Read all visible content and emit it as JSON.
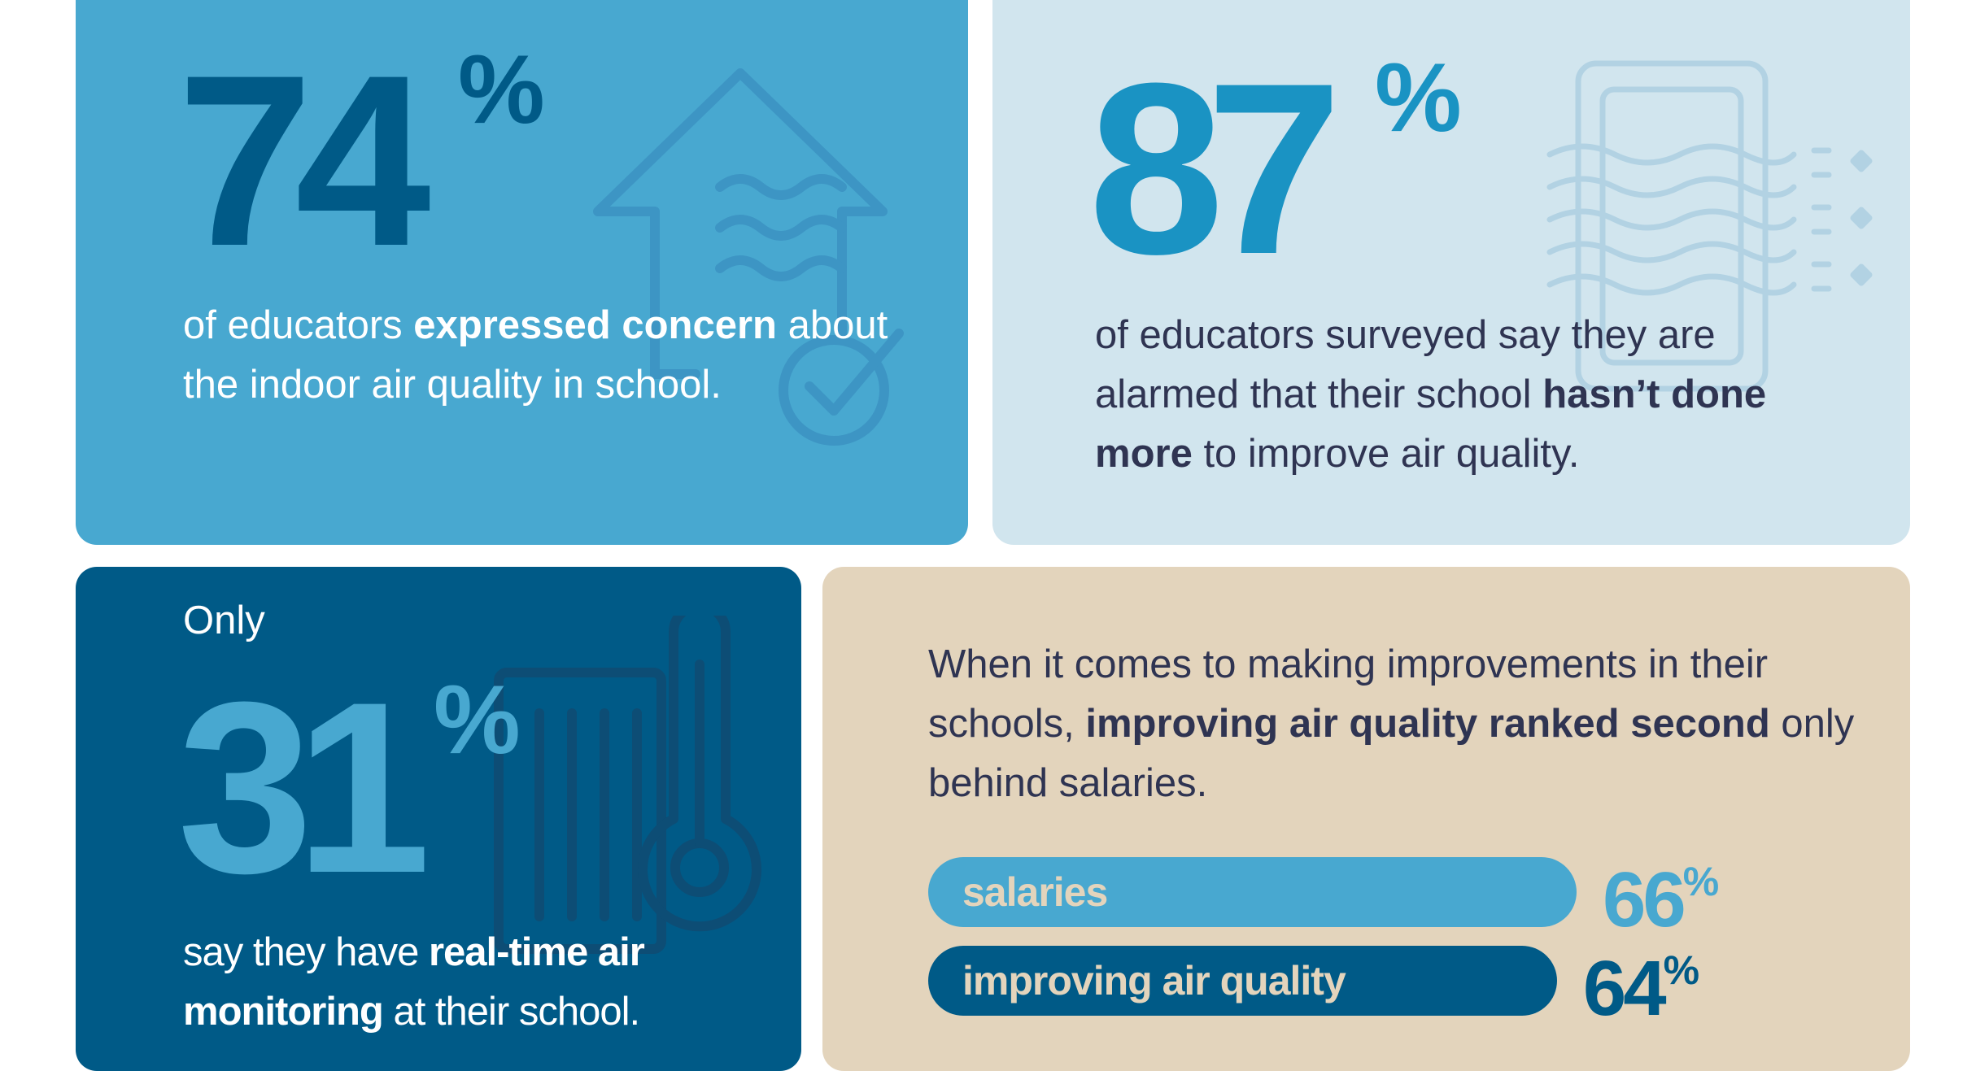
{
  "cards": [
    {
      "stat": "74",
      "percent_sign": "%",
      "text_pre": "of educators ",
      "text_bold": "expressed concern",
      "text_post": " about the indoor air quality in school.",
      "icon": "house-air-check-icon",
      "bg_color": "#48a8d0",
      "stat_color": "#005a87"
    },
    {
      "stat": "87",
      "percent_sign": "%",
      "text_pre": "of educators surveyed say they are alarmed that their school ",
      "text_bold": "hasn’t done more",
      "text_post": " to improve air quality.",
      "icon": "air-purifier-icon",
      "bg_color": "#d1e5ee",
      "stat_color": "#1a93c3"
    },
    {
      "lead": "Only",
      "stat": "31",
      "percent_sign": "%",
      "text_pre": "say they have ",
      "text_bold": "real-time air monitoring",
      "text_post": " at their school.",
      "icon": "thermometer-vent-icon",
      "bg_color": "#005a87",
      "stat_color": "#48a8d0"
    },
    {
      "text_pre": "When it comes to making improvements in their schools, ",
      "text_bold": "improving air quality ranked second",
      "text_post": " only behind salaries.",
      "bg_color": "#e3d4bc",
      "bars": [
        {
          "label": "salaries",
          "value": 66,
          "value_text": "66",
          "percent_sign": "%",
          "color": "#48a8d0"
        },
        {
          "label": "improving air quality",
          "value": 64,
          "value_text": "64",
          "percent_sign": "%",
          "color": "#005a87"
        }
      ]
    }
  ]
}
